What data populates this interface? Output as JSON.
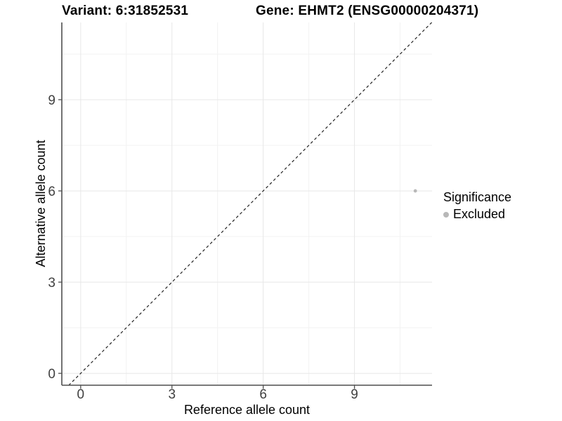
{
  "header": {
    "title_left": "Variant: 6:31852531",
    "title_right": "Gene: EHMT2 (ENSG00000204371)"
  },
  "chart_data": {
    "type": "scatter",
    "title": "Variant: 6:31852531 — Gene: EHMT2 (ENSG00000204371)",
    "xlabel": "Reference allele count",
    "ylabel": "Alternative allele count",
    "xlim": [
      -0.62,
      11.55
    ],
    "ylim": [
      -0.39,
      11.54
    ],
    "xticks": [
      0,
      3,
      6,
      9
    ],
    "yticks": [
      0,
      3,
      6,
      9
    ],
    "xminor": [
      1.5,
      4.5,
      7.5,
      10.5
    ],
    "yminor": [
      1.5,
      4.5,
      7.5,
      10.5
    ],
    "grid": "major and minor gridlines on white panel",
    "identity_line": {
      "equation": "y = x",
      "style": "dashed",
      "color": "#111111"
    },
    "series": [
      {
        "name": "Excluded",
        "color": "#b8b8b8",
        "points": [
          {
            "x": 11,
            "y": 6
          }
        ]
      }
    ],
    "legend": {
      "title": "Significance",
      "position": "right",
      "items": [
        {
          "label": "Excluded",
          "color": "#b8b8b8"
        }
      ]
    }
  },
  "colors": {
    "background": "#ffffff",
    "grid_major": "#e7e7e7",
    "grid_minor": "#f2f2f2",
    "axis_line": "#4f4f4f",
    "tick_text": "#404040",
    "point": "#b8b8b8",
    "dashed_line": "#111111"
  }
}
